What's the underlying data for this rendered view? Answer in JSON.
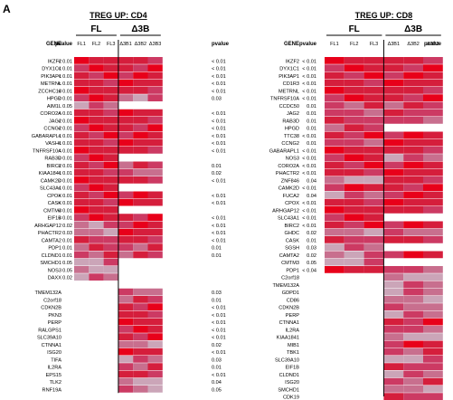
{
  "panel_label": "A",
  "colors": {
    "strong": "#e8001a",
    "high": "#d51e3c",
    "medium": "#cc3a63",
    "low": "#c86f8e",
    "pale": "#cba5b8",
    "none": "#d2d2d2",
    "divider": "#000000"
  },
  "chart_data": [
    {
      "type": "heatmap",
      "title": "TREG UP: CD4",
      "group_labels": [
        "FL",
        "Δ3B"
      ],
      "gene_header": "GENE",
      "pvalue_header": "pvalue",
      "fl_columns": [
        "FL1",
        "FL2",
        "FL3"
      ],
      "d3b_columns": [
        "Δ3B1",
        "Δ3B2",
        "Δ3B3"
      ],
      "fl_genes": [
        "IKZF2",
        "DYX1C1",
        "PIK3AP1",
        "METRNL",
        "ZCCHC18",
        "HPGD",
        "AIM1L",
        "CORO2A",
        "JAG2",
        "CCNG2",
        "GABARAPL1",
        "VASH1",
        "TNFRSF10A",
        "RAB3D",
        "BIRC2",
        "KIAA1841",
        "CAMK2D",
        "SLC43A1",
        "CPOX",
        "CASK",
        "CMTM3",
        "EIF1B",
        "ARHGAP12",
        "PHACTR2",
        "CAMTA2",
        "PDP1",
        "CLDND1",
        "SMCHD1",
        "NOS3",
        "DAXX"
      ],
      "fl_pvalues": [
        "< 0.01",
        "< 0.01",
        "< 0.01",
        "< 0.01",
        "< 0.01",
        "< 0.01",
        "0.05",
        "< 0.01",
        "< 0.01",
        "< 0.01",
        "< 0.01",
        "< 0.01",
        "< 0.01",
        "< 0.01",
        "< 0.01",
        "< 0.01",
        "< 0.01",
        "< 0.01",
        "< 0.01",
        "< 0.01",
        "< 0.01",
        "< 0.01",
        "0.02",
        "0.03",
        "0.01",
        "0.01",
        "0.01",
        "0.05",
        "0.05",
        "0.02"
      ],
      "d3b_top_genes": [
        "IKZF2",
        "DYX1C1",
        "PIK3AP1",
        "METRNL",
        "ZCCHC18",
        "HPGD",
        "AIM1L",
        "CORO2A",
        "JAG2",
        "CCNG2",
        "GABARAPL1",
        "VASH1",
        "TNFRSF10A",
        "RAB3D",
        "BIRC2",
        "KIAA1841",
        "CAMK2D",
        "SLC43A1",
        "CPOX",
        "CASK",
        "CMTM3",
        "EIF1B",
        "ARHGAP12",
        "PHACTR2",
        "CAMTA2",
        "PDP1",
        "CLDND1"
      ],
      "d3b_top_pvalues": [
        "< 0.01",
        "< 0.01",
        "< 0.01",
        "< 0.01",
        "< 0.01",
        "0.03",
        "",
        "< 0.01",
        "< 0.01",
        "< 0.01",
        "< 0.01",
        "< 0.01",
        "< 0.01",
        "",
        "0.01",
        "0.02",
        "< 0.01",
        "",
        "< 0.01",
        "< 0.01",
        "",
        "< 0.01",
        "< 0.01",
        "< 0.01",
        "< 0.01",
        "0.01",
        "0.01"
      ],
      "d3b_genes": [
        "TMEM132A",
        "C2orf18",
        "CDKN2B",
        "PKN3",
        "PERP",
        "RALGPS1",
        "SLC39A10",
        "CTNNA1",
        "ISG20",
        "TIFA",
        "IL2RA",
        "EPS15",
        "TLK2",
        "RNF19A"
      ],
      "d3b_pvalues": [
        "0.03",
        "0.01",
        "< 0.01",
        "< 0.01",
        "< 0.01",
        "< 0.01",
        "< 0.01",
        "0.02",
        "< 0.01",
        "0.03",
        "0.01",
        "< 0.01",
        "0.04",
        "0.05"
      ]
    },
    {
      "type": "heatmap",
      "title": "TREG UP: CD8",
      "group_labels": [
        "FL",
        "Δ3B"
      ],
      "gene_header": "GENE",
      "pvalue_header": "pvalue",
      "fl_columns": [
        "FL1",
        "FL2",
        "FL3"
      ],
      "d3b_columns": [
        "Δ3B1",
        "Δ3B2",
        "Δ3B3"
      ],
      "fl_genes": [
        "IKZF2",
        "DYX1C1",
        "PIK3AP1",
        "CD1R3",
        "METRNL",
        "TNFRSF10A",
        "CCDC50",
        "JAG2",
        "RAB3D",
        "HPGD",
        "TTC38",
        "CCNG2",
        "GABARAPL1",
        "NOS3",
        "CORO2A",
        "PHACTR2",
        "ZNF846",
        "CAMK2D",
        "FUCA2",
        "CPOX",
        "ARHGAP12",
        "SLC43A1",
        "BIRC2",
        "GHDC",
        "CASK",
        "SGSH",
        "CAMTA2",
        "CMTM3",
        "PDP1"
      ],
      "fl_pvalues": [
        "< 0.01",
        "< 0.01",
        "< 0.01",
        "< 0.01",
        "< 0.01",
        "< 0.01",
        "0.01",
        "0.01",
        "0.01",
        "0.01",
        "< 0.01",
        "0.01",
        "< 0.01",
        "< 0.01",
        "< 0.01",
        "< 0.01",
        "0.04",
        "< 0.01",
        "0.04",
        "< 0.01",
        "< 0.01",
        "< 0.01",
        "< 0.01",
        "0.02",
        "0.01",
        "0.03",
        "0.02",
        "0.05",
        "< 0.04"
      ],
      "d3b_top_genes": [
        "IKZF2",
        "DYX1C1",
        "PIK3AP1",
        "CD1R3",
        "METRNL",
        "TNFRSF10A",
        "CCDC50",
        "JAG2",
        "RAB3D",
        "HPGD",
        "TTC38",
        "CCNG2",
        "GABARAPL1",
        "NOS3",
        "CORO2A",
        "PHACTR2",
        "ZNF846",
        "CAMK2D",
        "FUCA2",
        "CPOX",
        "ARHGAP12",
        "SLC43A1",
        "BIRC2",
        "GHDC",
        "CASK",
        "SGSH",
        "CAMTA2",
        "CMTM3",
        "PDP1"
      ],
      "d3b_top_pvalues": [
        "< 0.01",
        "< 0.01",
        "< 0.01",
        "< 0.01",
        "< 0.01",
        "< 0.01",
        "0.01",
        "0.01",
        "0.01",
        "",
        "< 0.01",
        "< 0.01",
        "< 0.01",
        "0.05",
        "< 0.01",
        "< 0.01",
        "< 0.01",
        "< 0.01",
        "< 0.01",
        "< 0.01",
        "< 0.01",
        "",
        "< 0.01",
        "0.02",
        "< 0.01",
        "",
        "< 0.01",
        "",
        "0.01"
      ],
      "d3b_genes": [
        "C2orf18",
        "TMEM132A",
        "GDPD1",
        "CD86",
        "CDKN2B",
        "PERP",
        "CTNNA1",
        "IL2RA",
        "KIAA1841",
        "MIB1",
        "TBK1",
        "SLC39A10",
        "EIF1B",
        "CLDND1",
        "ISG20",
        "SMCHD1",
        "CDK19",
        "EPS15"
      ],
      "d3b_pvalues": [
        "0.04",
        "0.02",
        "0.04",
        "0.02",
        "0.02",
        "0.02",
        "< 0.01",
        "0.01",
        "0.04",
        "< 0.01",
        "0.01",
        "0.05",
        "0.01",
        "0.02",
        "0.01",
        "0.03",
        "0.01",
        "0.01"
      ]
    }
  ]
}
